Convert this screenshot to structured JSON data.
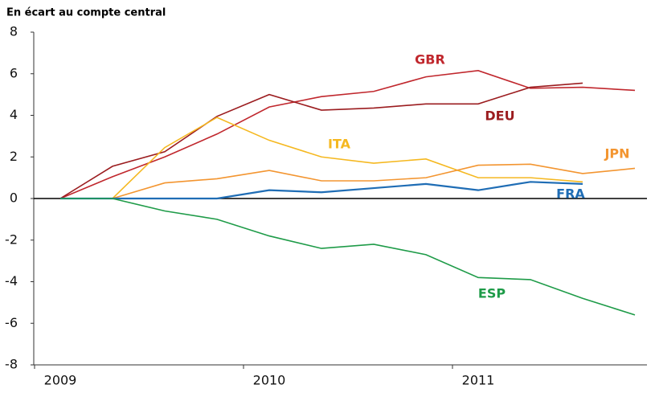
{
  "chart_data": {
    "type": "line",
    "y_label": "En écart au compte central",
    "categories": [
      "2009",
      null,
      null,
      null,
      "2010",
      null,
      null,
      null,
      "2011",
      null,
      null,
      null
    ],
    "ylim": [
      -8,
      8
    ],
    "yticks": [
      -8,
      -6,
      -4,
      -2,
      0,
      2,
      4,
      6,
      8
    ],
    "series": [
      {
        "name": "GBR",
        "color": "#c0272d",
        "values": [
          0,
          1.05,
          2.0,
          3.1,
          4.4,
          4.9,
          5.15,
          5.85,
          6.15,
          5.3,
          5.35,
          5.2
        ]
      },
      {
        "name": "DEU",
        "color": "#9b1c1f",
        "values": [
          0,
          1.55,
          2.25,
          3.95,
          5.0,
          4.25,
          4.35,
          4.55,
          4.55,
          5.35,
          5.55,
          null
        ]
      },
      {
        "name": "ITA",
        "color": "#f5b820",
        "values": [
          0,
          0,
          2.45,
          3.9,
          2.8,
          2.0,
          1.7,
          1.9,
          1.0,
          1.0,
          0.8,
          null
        ]
      },
      {
        "name": "JPN",
        "color": "#f39530",
        "values": [
          0,
          0,
          0.75,
          0.95,
          1.35,
          0.85,
          0.85,
          1.0,
          1.6,
          1.65,
          1.2,
          1.45
        ]
      },
      {
        "name": "FRA",
        "color": "#1f6db5",
        "values": [
          0,
          0,
          0,
          0,
          0.4,
          0.3,
          0.5,
          0.7,
          0.4,
          0.8,
          0.7,
          null
        ]
      },
      {
        "name": "ESP",
        "color": "#1e9b48",
        "values": [
          0,
          0,
          -0.6,
          -1.0,
          -1.8,
          -2.4,
          -2.2,
          -2.7,
          -3.8,
          -3.9,
          -4.8,
          -5.6
        ]
      }
    ]
  }
}
